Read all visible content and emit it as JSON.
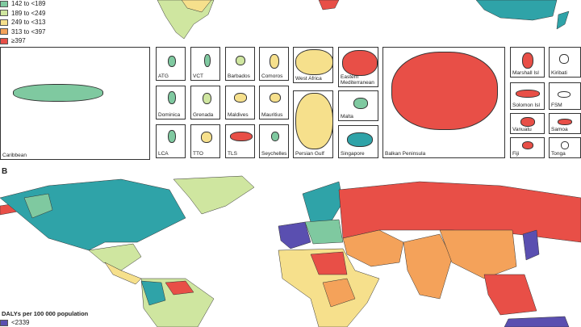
{
  "panel_a": {
    "legend": [
      {
        "label": "142 to <189",
        "color": "#7fc9a0"
      },
      {
        "label": "189 to <249",
        "color": "#cfe6a0"
      },
      {
        "label": "249 to <313",
        "color": "#f6e08c"
      },
      {
        "label": "313 to <397",
        "color": "#f4a25a"
      },
      {
        "label": "≥397",
        "color": "#e84f47"
      }
    ],
    "insets": [
      "Caribbean",
      "ATG",
      "VCT",
      "Barbados",
      "Comoros",
      "Dominica",
      "Grenada",
      "Maldives",
      "Mauritius",
      "LCA",
      "TTO",
      "TLS",
      "Seychelles",
      "West Africa",
      "Persian Gulf",
      "Eastern Mediterranean",
      "Malta",
      "Singapore",
      "Balkan Peninsula",
      "Marshall Isl",
      "Kiribati",
      "Solomon Isl",
      "FSM",
      "Vanuatu",
      "Samoa",
      "Fiji",
      "Tonga"
    ]
  },
  "panel_b": {
    "label": "B",
    "legend_title": "DALYs per 100 000 population",
    "legend": [
      {
        "label": "<2339",
        "color": "#5a4fb0"
      }
    ]
  }
}
